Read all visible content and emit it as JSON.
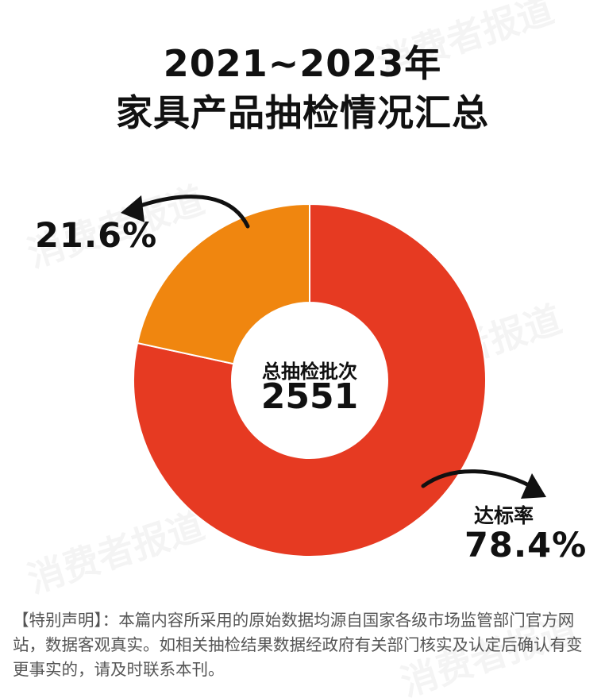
{
  "title": {
    "line1": "2021~2023年",
    "line2": "家具产品抽检情况汇总"
  },
  "watermark_text": "消费者报道",
  "center": {
    "label": "总抽检批次",
    "value": "2551"
  },
  "colors": {
    "pass": "#E63A22",
    "fail": "#F0860F",
    "arrow": "#111111"
  },
  "chart_data": {
    "type": "pie",
    "donut": true,
    "slices": [
      {
        "label": "达标率",
        "value": 78.4,
        "display": "78.4%"
      },
      {
        "label": "",
        "value": 21.6,
        "display": "21.6%"
      }
    ]
  },
  "disclaimer": "【特别声明】：本篇内容所采用的原始数据均源自国家各级市场监管部门官方网站，数据客观真实。如相关抽检结果数据经政府有关部门核实及认定后确认有变更事实的，请及时联系本刊。"
}
